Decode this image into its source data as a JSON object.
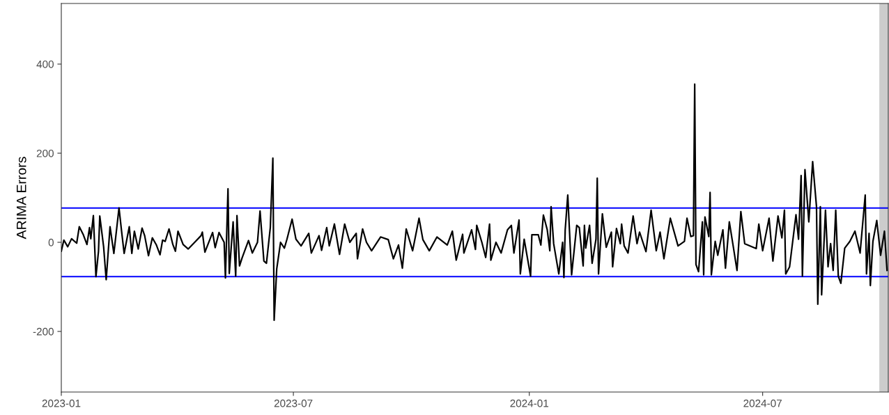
{
  "chart_data": {
    "type": "line",
    "ylabel": "ARIMA Errors",
    "x": [
      "2023-01-01",
      "2023-01-03",
      "2023-01-06",
      "2023-01-09",
      "2023-01-13",
      "2023-01-15",
      "2023-01-18",
      "2023-01-21",
      "2023-01-23",
      "2023-01-24",
      "2023-01-26",
      "2023-01-28",
      "2023-01-30",
      "2023-01-31",
      "2023-02-03",
      "2023-02-05",
      "2023-02-08",
      "2023-02-11",
      "2023-02-15",
      "2023-02-17",
      "2023-02-19",
      "2023-02-23",
      "2023-02-25",
      "2023-02-27",
      "2023-03-02",
      "2023-03-05",
      "2023-03-07",
      "2023-03-10",
      "2023-03-13",
      "2023-03-16",
      "2023-03-19",
      "2023-03-21",
      "2023-03-23",
      "2023-03-26",
      "2023-03-29",
      "2023-03-31",
      "2023-04-02",
      "2023-04-06",
      "2023-04-10",
      "2023-04-15",
      "2023-04-20",
      "2023-04-21",
      "2023-04-23",
      "2023-04-29",
      "2023-05-01",
      "2023-05-04",
      "2023-05-08",
      "2023-05-09",
      "2023-05-11",
      "2023-05-12",
      "2023-05-15",
      "2023-05-17",
      "2023-05-18",
      "2023-05-20",
      "2023-05-22",
      "2023-05-27",
      "2023-05-30",
      "2023-06-03",
      "2023-06-05",
      "2023-06-08",
      "2023-06-10",
      "2023-06-13",
      "2023-06-15",
      "2023-06-16",
      "2023-06-18",
      "2023-06-21",
      "2023-06-24",
      "2023-06-26",
      "2023-06-30",
      "2023-07-03",
      "2023-07-07",
      "2023-07-13",
      "2023-07-15",
      "2023-07-21",
      "2023-07-23",
      "2023-07-27",
      "2023-07-29",
      "2023-08-02",
      "2023-08-06",
      "2023-08-10",
      "2023-08-14",
      "2023-08-19",
      "2023-08-20",
      "2023-08-24",
      "2023-08-27",
      "2023-08-31",
      "2023-09-07",
      "2023-09-13",
      "2023-09-17",
      "2023-09-21",
      "2023-09-24",
      "2023-09-27",
      "2023-10-02",
      "2023-10-07",
      "2023-10-10",
      "2023-10-15",
      "2023-10-21",
      "2023-10-29",
      "2023-11-02",
      "2023-11-05",
      "2023-11-10",
      "2023-11-11",
      "2023-11-17",
      "2023-11-20",
      "2023-11-21",
      "2023-11-25",
      "2023-11-28",
      "2023-12-01",
      "2023-12-02",
      "2023-12-06",
      "2023-12-10",
      "2023-12-15",
      "2023-12-18",
      "2023-12-20",
      "2023-12-24",
      "2023-12-25",
      "2023-12-28",
      "2024-01-02",
      "2024-01-03",
      "2024-01-08",
      "2024-01-10",
      "2024-01-12",
      "2024-01-15",
      "2024-01-17",
      "2024-01-18",
      "2024-01-20",
      "2024-01-24",
      "2024-01-27",
      "2024-01-28",
      "2024-01-29",
      "2024-01-31",
      "2024-02-03",
      "2024-02-07",
      "2024-02-09",
      "2024-02-12",
      "2024-02-13",
      "2024-02-14",
      "2024-02-17",
      "2024-02-19",
      "2024-02-22",
      "2024-02-23",
      "2024-02-24",
      "2024-02-27",
      "2024-03-01",
      "2024-03-05",
      "2024-03-06",
      "2024-03-09",
      "2024-03-12",
      "2024-03-13",
      "2024-03-15",
      "2024-03-18",
      "2024-03-22",
      "2024-03-25",
      "2024-03-27",
      "2024-04-01",
      "2024-04-05",
      "2024-04-09",
      "2024-04-12",
      "2024-04-15",
      "2024-04-20",
      "2024-04-26",
      "2024-05-01",
      "2024-05-03",
      "2024-05-06",
      "2024-05-08",
      "2024-05-09",
      "2024-05-10",
      "2024-05-12",
      "2024-05-13",
      "2024-05-15",
      "2024-05-16",
      "2024-05-17",
      "2024-05-20",
      "2024-05-21",
      "2024-05-22",
      "2024-05-25",
      "2024-05-27",
      "2024-05-31",
      "2024-06-02",
      "2024-06-05",
      "2024-06-08",
      "2024-06-11",
      "2024-06-14",
      "2024-06-17",
      "2024-06-26",
      "2024-06-28",
      "2024-07-01",
      "2024-07-06",
      "2024-07-09",
      "2024-07-13",
      "2024-07-16",
      "2024-07-18",
      "2024-07-19",
      "2024-07-22",
      "2024-07-27",
      "2024-07-29",
      "2024-07-31",
      "2024-08-01",
      "2024-08-03",
      "2024-08-06",
      "2024-08-09",
      "2024-08-12",
      "2024-08-13",
      "2024-08-15",
      "2024-08-16",
      "2024-08-19",
      "2024-08-21",
      "2024-08-23",
      "2024-08-25",
      "2024-08-27",
      "2024-08-29",
      "2024-08-31",
      "2024-09-03",
      "2024-09-07",
      "2024-09-11",
      "2024-09-15",
      "2024-09-19",
      "2024-09-20",
      "2024-09-22",
      "2024-09-23",
      "2024-09-25",
      "2024-09-28",
      "2024-10-01",
      "2024-10-04",
      "2024-10-06"
    ],
    "series": [
      {
        "color": "#000000",
        "values": [
          -20,
          5,
          -10,
          8,
          -2,
          35,
          18,
          -5,
          33,
          8,
          60,
          -77,
          -20,
          59,
          -10,
          -84,
          35,
          -25,
          77,
          25,
          -25,
          35,
          -25,
          25,
          -15,
          32,
          15,
          -30,
          10,
          -5,
          -28,
          5,
          2,
          30,
          -5,
          -20,
          25,
          -5,
          -15,
          0,
          15,
          23,
          -22,
          22,
          -12,
          22,
          0,
          -80,
          120,
          -70,
          46,
          -76,
          60,
          -53,
          -35,
          4,
          -24,
          0,
          70,
          -42,
          -47,
          33,
          189,
          -175,
          -60,
          0,
          -13,
          7,
          52,
          7,
          -8,
          20,
          -24,
          15,
          -18,
          33,
          -8,
          41,
          -27,
          41,
          0,
          20,
          -37,
          30,
          0,
          -19,
          12,
          6,
          -37,
          -6,
          -58,
          30,
          -19,
          54,
          6,
          -19,
          12,
          -6,
          25,
          -40,
          18,
          -24,
          28,
          -16,
          38,
          0,
          -34,
          41,
          -40,
          0,
          -24,
          28,
          38,
          -24,
          50,
          -71,
          7,
          -76,
          17,
          17,
          -6,
          61,
          28,
          -19,
          80,
          -3,
          -71,
          0,
          -79,
          28,
          106,
          -73,
          38,
          33,
          -53,
          38,
          -13,
          38,
          -47,
          7,
          144,
          -71,
          64,
          -11,
          23,
          -55,
          31,
          -3,
          41,
          -8,
          -24,
          59,
          -3,
          23,
          -21,
          72,
          -19,
          23,
          -37,
          54,
          -8,
          2,
          54,
          13,
          15,
          355,
          -50,
          -66,
          -29,
          46,
          -73,
          57,
          13,
          112,
          -73,
          2,
          -29,
          28,
          -58,
          46,
          -8,
          -63,
          69,
          -3,
          -14,
          41,
          -19,
          54,
          -42,
          59,
          10,
          72,
          -71,
          -55,
          62,
          7,
          150,
          -76,
          163,
          46,
          181,
          80,
          -139,
          80,
          -118,
          72,
          -55,
          -3,
          -63,
          72,
          -76,
          -92,
          -13,
          2,
          25,
          -24,
          106,
          -71,
          20,
          -97,
          2,
          49,
          -29,
          25,
          -63
        ]
      }
    ],
    "xlim": [
      "2023-01-01",
      "2024-10-07"
    ],
    "xticks": [
      {
        "value": "2023-01-01",
        "label": "2023-01"
      },
      {
        "value": "2023-07-01",
        "label": "2023-07"
      },
      {
        "value": "2024-01-01",
        "label": "2024-01"
      },
      {
        "value": "2024-07-01",
        "label": "2024-07"
      }
    ],
    "ylim": [
      -336,
      536
    ],
    "yticks": [
      -200,
      0,
      200,
      400
    ],
    "ref_lines": [
      {
        "axis": "y",
        "value": 77,
        "color": "#0000ff"
      },
      {
        "axis": "y",
        "value": -77,
        "color": "#0000ff"
      }
    ],
    "bands": [
      {
        "axis": "x",
        "from": "2024-09-30",
        "to": "2024-10-07",
        "color": "#cccccc"
      }
    ],
    "grid": false
  }
}
